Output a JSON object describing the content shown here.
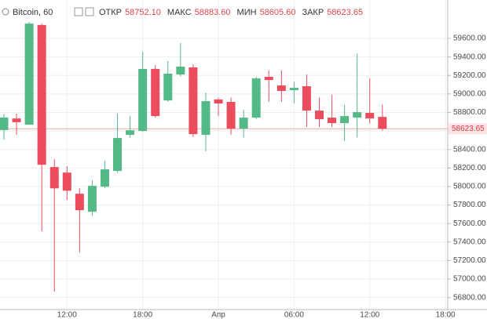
{
  "header": {
    "symbol": "Bitcoin, 60",
    "ohlc": [
      {
        "name": "ОТКР",
        "value": "58752.10"
      },
      {
        "name": "МАКС",
        "value": "58883.60"
      },
      {
        "name": "МИН",
        "value": "58605.60"
      },
      {
        "name": "ЗАКР",
        "value": "58623.65"
      }
    ]
  },
  "chart_data": {
    "type": "candlestick",
    "categories": [
      null,
      null,
      null,
      null,
      null,
      "12:00",
      null,
      null,
      null,
      null,
      null,
      "18:00",
      null,
      null,
      null,
      null,
      null,
      "Апр",
      null,
      null,
      null,
      null,
      null,
      "06:00",
      null,
      null,
      null,
      null,
      null,
      "12:00",
      null,
      null,
      null,
      null,
      null,
      "18:00"
    ],
    "open": [
      58610,
      58735,
      58668,
      59745,
      58210,
      58150,
      57922,
      57727,
      57998,
      58168,
      58558,
      58600,
      59270,
      58930,
      59210,
      59287,
      58558,
      58940,
      58914,
      58625,
      58744,
      59185,
      59092,
      59041,
      59083,
      58820,
      58744,
      58685,
      58744,
      58795,
      58752.1,
      null,
      null,
      null,
      null,
      null
    ],
    "high": [
      58786,
      58786,
      59778,
      59761,
      58295,
      58219,
      57981,
      58066,
      58278,
      58786,
      58761,
      59456,
      59312,
      59354,
      59549,
      59320,
      59015,
      58960,
      58960,
      58830,
      59185,
      59253,
      59253,
      59130,
      59210,
      58960,
      58990,
      58880,
      59439,
      59168,
      58883.6,
      null,
      null,
      null,
      null,
      null
    ],
    "low": [
      58507,
      58560,
      58668,
      57515,
      56863,
      57854,
      57286,
      57685,
      57981,
      58150,
      58530,
      58590,
      58744,
      58915,
      59190,
      58532,
      58380,
      58760,
      58560,
      58530,
      58730,
      58914,
      58914,
      58900,
      58642,
      58642,
      58642,
      58490,
      58530,
      58680,
      58605.6,
      null,
      null,
      null,
      null,
      null
    ],
    "close": [
      58745,
      58695,
      59760,
      58235,
      57980,
      57955,
      57744,
      58007,
      58185,
      58524,
      58608,
      59270,
      58761,
      59219,
      59295,
      58566,
      58922,
      58897,
      58625,
      58744,
      59168,
      59150,
      59032,
      59066,
      58820,
      58727,
      58685,
      58761,
      58803,
      58735,
      58623.65,
      null,
      null,
      null,
      null,
      null
    ],
    "up_color": "#53b987",
    "down_color": "#eb4d5c",
    "ylim": [
      56670,
      60015
    ],
    "yticks": [
      {
        "value": 56800,
        "label": "56800.00"
      },
      {
        "value": 57000,
        "label": "57000.00"
      },
      {
        "value": 57200,
        "label": "57200.00"
      },
      {
        "value": 57400,
        "label": "57400.00"
      },
      {
        "value": 57600,
        "label": "57600.00"
      },
      {
        "value": 57800,
        "label": "57800.00"
      },
      {
        "value": 58000,
        "label": "58000.00"
      },
      {
        "value": 58200,
        "label": "58200.00"
      },
      {
        "value": 58400,
        "label": "58400.00"
      },
      {
        "value": 58600,
        "label": "58600.00"
      },
      {
        "value": 58800,
        "label": "58800.00"
      },
      {
        "value": 59000,
        "label": "59000.00"
      },
      {
        "value": 59200,
        "label": "59200.00"
      },
      {
        "value": 59400,
        "label": "59400.00"
      },
      {
        "value": 59600,
        "label": "59600.00"
      }
    ],
    "last_price": 58623.65,
    "grid": true
  }
}
